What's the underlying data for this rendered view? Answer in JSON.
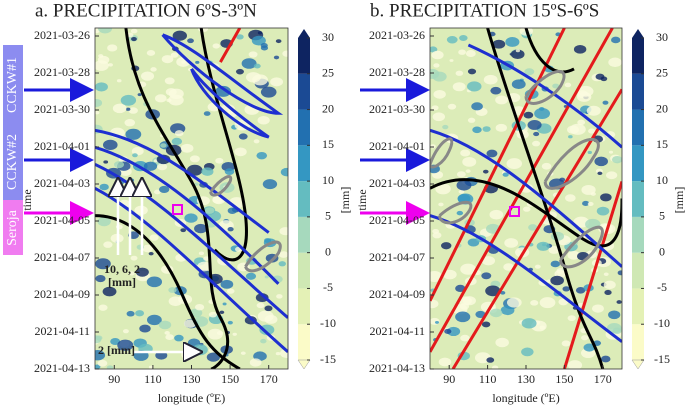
{
  "chart_data": [
    {
      "type": "heatmap",
      "title": "a. PRECIPITATION 6ºS-3ºN",
      "x_label": "longitude (ºE)",
      "y_label": "time",
      "xlim": [
        80,
        180
      ],
      "xticks": [
        90,
        110,
        130,
        150,
        170
      ],
      "ylim": [
        "2021-03-26",
        "2021-04-13"
      ],
      "yticks": [
        "2021-03-26",
        "2021-03-28",
        "2021-03-30",
        "2021-04-01",
        "2021-04-03",
        "2021-04-05",
        "2021-04-07",
        "2021-04-09",
        "2021-04-11",
        "2021-04-13"
      ],
      "colorbar_label": "[mm]",
      "clim": [
        -15,
        30
      ],
      "cticks": [
        -15,
        -10,
        -5,
        0,
        5,
        10,
        15,
        20,
        25,
        30
      ],
      "colormap": [
        "#fbfbc8",
        "#e4f1b6",
        "#cfe8b4",
        "#a6d9bd",
        "#64bcc0",
        "#3497c2",
        "#2270b0",
        "#1b4a94",
        "#0e2461"
      ],
      "annotations": [
        "CCKW#1",
        "CCKW#2",
        "Seroja",
        "10, 6, 2",
        "[mm]",
        "2 [mm]"
      ]
    },
    {
      "type": "heatmap",
      "title": "b. PRECIPITATION 15ºS-6ºS",
      "x_label": "longitude (ºE)",
      "y_label": "time",
      "xlim": [
        80,
        180
      ],
      "xticks": [
        90,
        110,
        130,
        150,
        170
      ],
      "ylim": [
        "2021-03-26",
        "2021-04-13"
      ],
      "yticks": [
        "2021-03-26",
        "2021-03-28",
        "2021-03-30",
        "2021-04-01",
        "2021-04-03",
        "2021-04-05",
        "2021-04-07",
        "2021-04-09",
        "2021-04-11",
        "2021-04-13"
      ],
      "colorbar_label": "[mm]",
      "clim": [
        -15,
        30
      ],
      "cticks": [
        -15,
        -10,
        -5,
        0,
        5,
        10,
        15,
        20,
        25,
        30
      ],
      "colormap": [
        "#fbfbc8",
        "#e4f1b6",
        "#cfe8b4",
        "#a6d9bd",
        "#64bcc0",
        "#3497c2",
        "#2270b0",
        "#1b4a94",
        "#0e2461"
      ]
    }
  ]
}
